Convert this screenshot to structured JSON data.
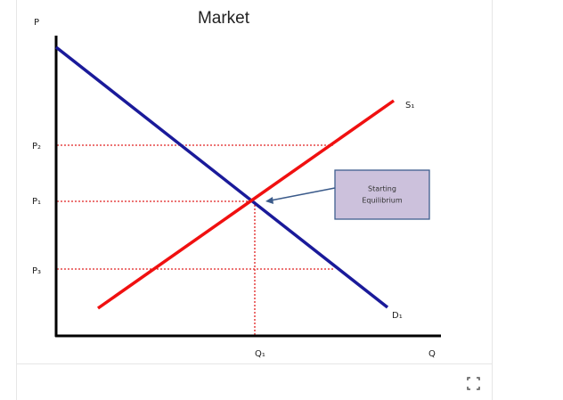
{
  "title": "Market",
  "axes": {
    "y_label": "P",
    "x_label": "Q"
  },
  "curves": {
    "supply": "S₁",
    "demand": "D₁"
  },
  "price_levels": [
    "P₂",
    "P₁",
    "P₃"
  ],
  "quantity_levels": [
    "Q₁"
  ],
  "annotation": {
    "line1": "Starting",
    "line2": "Equilibrium"
  }
}
